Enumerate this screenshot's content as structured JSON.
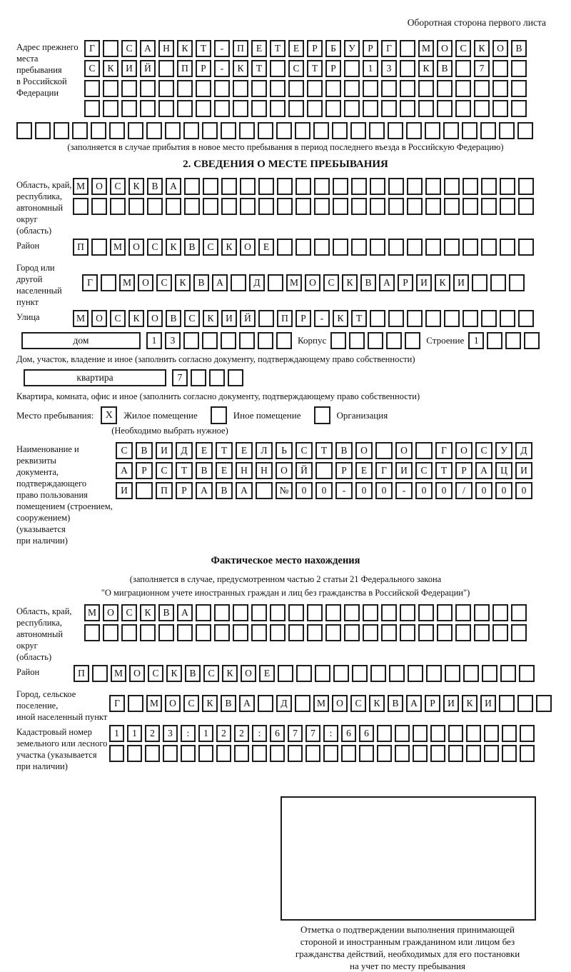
{
  "header": {
    "page_note": "Оборотная сторона первого листа"
  },
  "section1": {
    "label": "Адрес прежнего\nместа пребывания\nв Российской\nФедерации",
    "rows": [
      "Г САНКТ-ПЕТЕРБУРГ МОСКОВ",
      "СКИЙ ПР-КТ СТР 13 КВ 7  ",
      "                        ",
      "                        "
    ],
    "full_row": "                            ",
    "note": "(заполняется в случае прибытия в новое место пребывания в период последнего въезда в Российскую Федерацию)"
  },
  "section2": {
    "title": "2. СВЕДЕНИЯ О МЕСТЕ ПРЕБЫВАНИЯ",
    "region": {
      "label": "Область, край,\nреспублика,\nавтономный\nокруг (область)",
      "rows": [
        "МОСКВА                   ",
        "                         "
      ]
    },
    "district": {
      "label": "Район",
      "row": "П МОСКВСКОЕ              "
    },
    "city": {
      "label": "Город или другой\nнаселенный пункт",
      "row": "Г МОСКВА Д МОСКВАРИКИ   "
    },
    "street": {
      "label": "Улица",
      "row": "МОСКОВСКИЙ ПР-КТ         "
    },
    "house": {
      "box_label": "дом",
      "cells": "13      ",
      "korpus_label": "Корпус",
      "korpus_cells": "     ",
      "stroenie_label": "Строение",
      "stroenie_cells": "1   ",
      "caption": "Дом, участок, владение и иное (заполнить согласно документу, подтверждающему право собственности)"
    },
    "apartment": {
      "box_label": "квартира",
      "cells": "7   ",
      "caption": "Квартира, комната, офис и иное (заполнить согласно документу, подтверждающему право собственности)"
    },
    "stay_type": {
      "label": "Место пребывания:",
      "options": [
        {
          "label": "Жилое помещение",
          "checked": "X"
        },
        {
          "label": "Иное помещение",
          "checked": ""
        },
        {
          "label": "Организация",
          "checked": ""
        }
      ],
      "note": "(Необходимо выбрать нужное)"
    },
    "document": {
      "label": "Наименование и реквизиты\nдокумента, подтверждающего\nправо пользования\nпомещением (строением,\nсооружением) (указывается\nпри наличии)",
      "rows": [
        "СВИДЕТЕЛЬСТВО О ГОСУД",
        "АРСТВЕННОЙ РЕГИСТРАЦИ",
        "И ПРАВА №00-00-00/000"
      ]
    }
  },
  "section3": {
    "title": "Фактическое место нахождения",
    "note_line1": "(заполняется в случае, предусмотренном частью 2 статьи 21 Федерального закона",
    "note_line2": "\"О миграционном учете иностранных граждан и лиц без гражданства в Российской Федерации\")",
    "region": {
      "label": "Область, край,\nреспублика,\nавтономный округ\n(область)",
      "rows": [
        "МОСКВА                  ",
        "                        "
      ]
    },
    "district": {
      "label": "Район",
      "row": "П МОСКВСКОЕ              "
    },
    "city": {
      "label": "Город, сельское поселение,\nиной населенный пункт",
      "row": "Г МОСКВА Д МОСКВАРИКИ   "
    },
    "cadastre": {
      "label": "Кадастровый номер\nземельного или лесного\nучастка (указывается\nпри наличии)",
      "rows": [
        "1123:122:677:66         ",
        "                        "
      ]
    },
    "stamp_caption": "Отметка о подтверждении выполнения принимающей\nстороной и иностранным гражданином или лицом без\nгражданства действий, необходимых для его постановки\nна учет по месту пребывания"
  }
}
